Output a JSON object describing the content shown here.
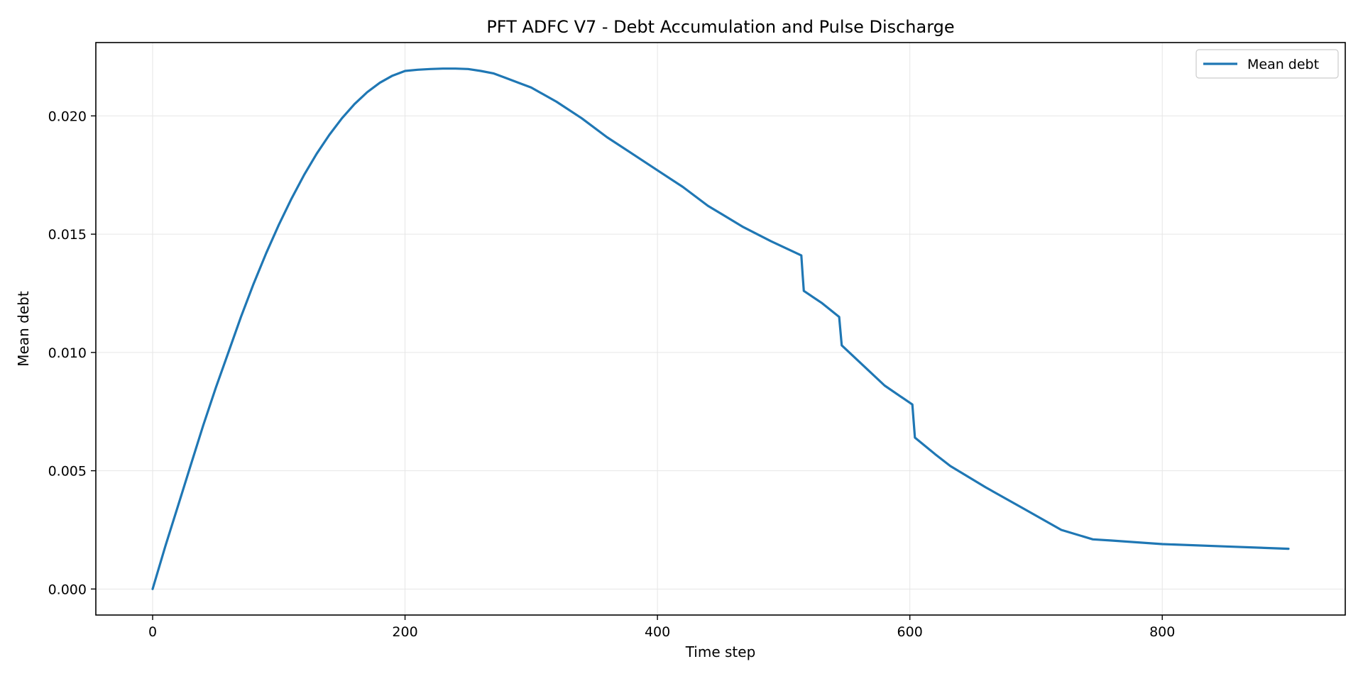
{
  "chart_data": {
    "type": "line",
    "title": "PFT ADFC V7 - Debt Accumulation and Pulse Discharge",
    "xlabel": "Time step",
    "ylabel": "Mean debt",
    "xlim": [
      -45,
      945
    ],
    "ylim": [
      -0.0011,
      0.0231
    ],
    "xticks": [
      0,
      200,
      400,
      600,
      800
    ],
    "xtick_labels": [
      "0",
      "200",
      "400",
      "600",
      "800"
    ],
    "yticks": [
      0.0,
      0.005,
      0.01,
      0.015,
      0.02
    ],
    "ytick_labels": [
      "0.000",
      "0.005",
      "0.010",
      "0.015",
      "0.020"
    ],
    "grid": true,
    "legend_position": "top-right",
    "colors": {
      "series": "#1f77b4",
      "grid": "#e6e6e6",
      "axes": "#000000"
    },
    "series": [
      {
        "name": "Mean debt",
        "x": [
          0,
          10,
          20,
          30,
          40,
          50,
          60,
          70,
          80,
          90,
          100,
          110,
          120,
          130,
          140,
          150,
          160,
          170,
          180,
          190,
          200,
          210,
          220,
          230,
          240,
          250,
          260,
          270,
          280,
          290,
          300,
          320,
          340,
          360,
          380,
          400,
          420,
          440,
          468,
          490,
          514,
          515,
          516,
          530,
          544,
          545,
          546,
          560,
          580,
          602,
          603,
          604,
          620,
          632,
          660,
          690,
          720,
          745,
          760,
          800,
          850,
          900
        ],
        "y": [
          0.0,
          0.0018,
          0.0035,
          0.0052,
          0.0069,
          0.0085,
          0.01,
          0.0115,
          0.0129,
          0.0142,
          0.0154,
          0.0165,
          0.0175,
          0.0184,
          0.0192,
          0.0199,
          0.0205,
          0.021,
          0.0214,
          0.0217,
          0.0219,
          0.02195,
          0.02198,
          0.022,
          0.022,
          0.02198,
          0.0219,
          0.0218,
          0.0216,
          0.0214,
          0.0212,
          0.0206,
          0.0199,
          0.0191,
          0.0184,
          0.0177,
          0.017,
          0.0162,
          0.0153,
          0.0147,
          0.0141,
          0.0133,
          0.0126,
          0.0121,
          0.0115,
          0.0109,
          0.0103,
          0.0096,
          0.0086,
          0.0078,
          0.0071,
          0.0064,
          0.0057,
          0.0052,
          0.0043,
          0.0034,
          0.0025,
          0.0021,
          0.00205,
          0.0019,
          0.0018,
          0.0017
        ]
      }
    ]
  }
}
